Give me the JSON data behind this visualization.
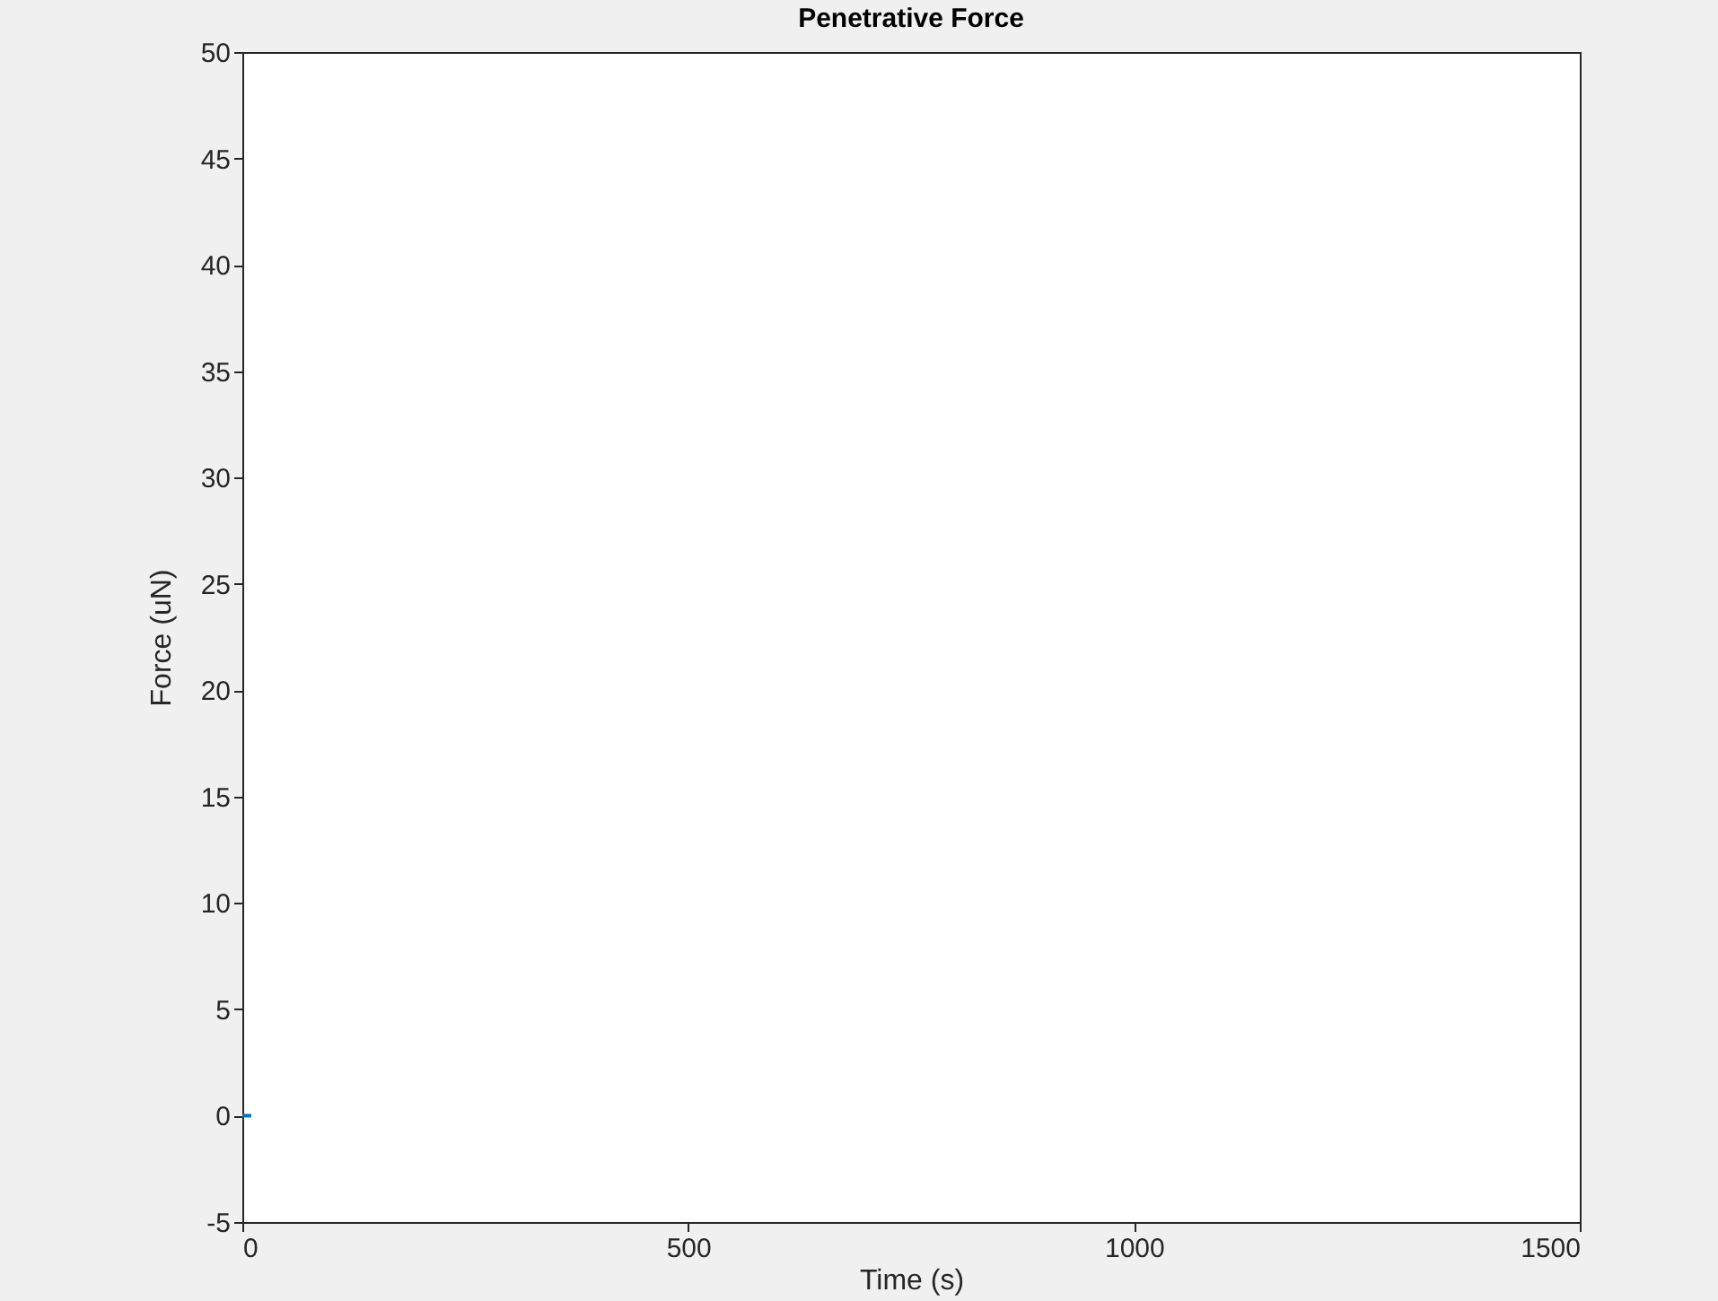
{
  "chart_data": {
    "type": "line",
    "title": "Penetrative Force",
    "xlabel": "Time (s)",
    "ylabel": "Force (uN)",
    "x": [
      0,
      10
    ],
    "series": [
      {
        "color": "#0072bd",
        "values": [
          0,
          0
        ]
      }
    ],
    "xlim": [
      0,
      1500
    ],
    "xticks": [
      0,
      500,
      1000,
      1500
    ],
    "ylim": [
      -5,
      50
    ],
    "yticks": [
      -5,
      0,
      5,
      10,
      15,
      20,
      25,
      30,
      35,
      40,
      45,
      50
    ],
    "grid": false
  }
}
